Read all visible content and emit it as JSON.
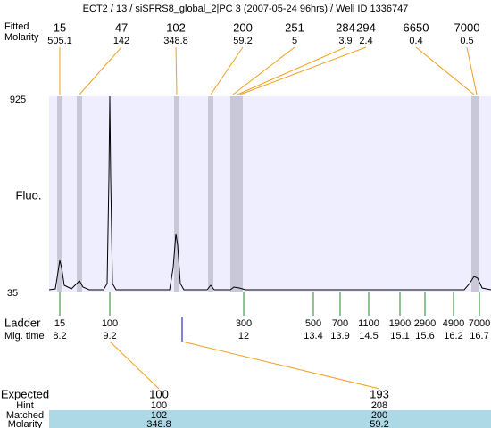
{
  "title": "ECT2 / 13 / siSFRS8_global_2|PC 3 (2007-05-24 96hrs) / Well ID 1336747",
  "peaks": {
    "size_label": "Fitted",
    "molarity_label": "Molarity",
    "sizes": [
      15,
      47,
      102,
      200,
      251,
      284,
      294,
      6650,
      7000
    ],
    "molarities": [
      505.1,
      142,
      348.8,
      59.2,
      5,
      3.9,
      2.4,
      0.4,
      0.5
    ]
  },
  "plot": {
    "y_label": "Fluo.",
    "y_top": 925,
    "y_bottom": 35
  },
  "ladder": {
    "label": "Ladder",
    "time_label": "Mig. time",
    "sizes": [
      15,
      100,
      300,
      500,
      700,
      1100,
      1900,
      2900,
      4900,
      7000
    ],
    "times": [
      8.2,
      9.2,
      12,
      13.4,
      13.9,
      14.5,
      15.1,
      15.6,
      16.2,
      16.7
    ]
  },
  "results": {
    "expected_label": "Expected",
    "hint_label": "Hint",
    "matched_label": "Matched",
    "molarity_label": "Molarity",
    "expected": [
      100,
      193
    ],
    "hint": [
      100,
      208
    ],
    "matched": [
      102,
      200
    ],
    "molarity": [
      348.8,
      59.2
    ]
  }
}
